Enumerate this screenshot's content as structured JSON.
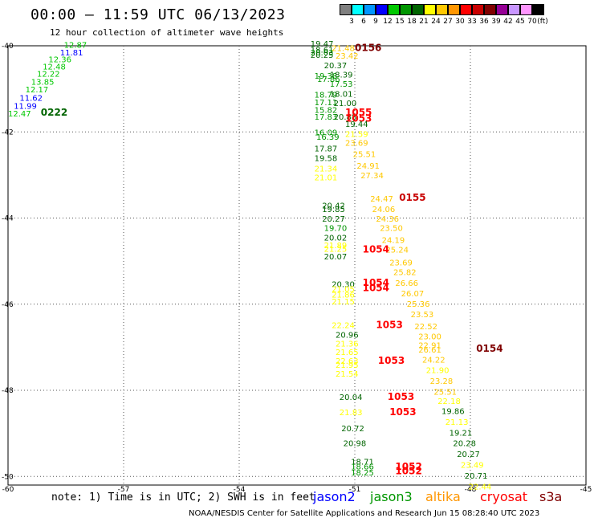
{
  "header": {
    "title": "00:00 – 11:59 UTC 06/13/2023",
    "subtitle": "12 hour collection of altimeter wave heights"
  },
  "colorbar": {
    "labels": [
      "3",
      "6",
      "9",
      "12",
      "15",
      "18",
      "21",
      "24",
      "27",
      "30",
      "33",
      "36",
      "39",
      "42",
      "45",
      "70"
    ],
    "unit": "(ft)",
    "colors": [
      "#808080",
      "#00ffff",
      "#0096ff",
      "#0000ff",
      "#00c800",
      "#009600",
      "#006400",
      "#ffff00",
      "#ffc800",
      "#ff9600",
      "#ff0000",
      "#c80000",
      "#800000",
      "#960096",
      "#c896ff",
      "#ff96ff",
      "#000000"
    ]
  },
  "map": {
    "lat_ticks": [
      "-40",
      "-42",
      "-44",
      "-46",
      "-48",
      "-50"
    ],
    "lon_ticks": [
      "-60",
      "-57",
      "-54",
      "-51",
      "-48",
      "-45"
    ],
    "labels": [
      {
        "lon": -58.55,
        "lat": -40.05,
        "text": "12.87",
        "color": "#00c800"
      },
      {
        "lon": -58.65,
        "lat": -40.22,
        "text": "11.81",
        "color": "#0000ff"
      },
      {
        "lon": -58.95,
        "lat": -40.38,
        "text": "12.36",
        "color": "#00c800"
      },
      {
        "lon": -59.1,
        "lat": -40.55,
        "text": "12.48",
        "color": "#00c800"
      },
      {
        "lon": -59.25,
        "lat": -40.72,
        "text": "12.22",
        "color": "#00c800"
      },
      {
        "lon": -59.4,
        "lat": -40.9,
        "text": "13.85",
        "color": "#00c800"
      },
      {
        "lon": -59.55,
        "lat": -41.08,
        "text": "12.17",
        "color": "#00c800"
      },
      {
        "lon": -59.7,
        "lat": -41.28,
        "text": "11.62",
        "color": "#0000ff"
      },
      {
        "lon": -59.85,
        "lat": -41.46,
        "text": "11.99",
        "color": "#0000ff"
      },
      {
        "lon": -60.0,
        "lat": -41.64,
        "text": "12.47",
        "color": "#00c800"
      },
      {
        "lon": -59.15,
        "lat": -41.62,
        "text": "0222",
        "color": "#006400",
        "big": true
      },
      {
        "lon": -52.15,
        "lat": -40.02,
        "text": "19.47",
        "color": "#006400"
      },
      {
        "lon": -52.15,
        "lat": -40.16,
        "text": "18.61",
        "color": "#006400"
      },
      {
        "lon": -52.15,
        "lat": -40.22,
        "text": "20.03",
        "color": "#009600"
      },
      {
        "lon": -52.15,
        "lat": -40.28,
        "text": "20.25",
        "color": "#006400"
      },
      {
        "lon": -51.6,
        "lat": -40.12,
        "text": "21.48",
        "color": "#ffc800"
      },
      {
        "lon": -51.5,
        "lat": -40.3,
        "text": "23.42",
        "color": "#ffc800"
      },
      {
        "lon": -51.0,
        "lat": -40.12,
        "text": "0156",
        "color": "#800000",
        "big": true
      },
      {
        "lon": -51.8,
        "lat": -40.52,
        "text": "20.37",
        "color": "#006400"
      },
      {
        "lon": -52.05,
        "lat": -40.76,
        "text": "19.38",
        "color": "#009600"
      },
      {
        "lon": -51.65,
        "lat": -40.74,
        "text": "18.39",
        "color": "#006400"
      },
      {
        "lon": -51.98,
        "lat": -40.84,
        "text": "17.86",
        "color": "#009600"
      },
      {
        "lon": -51.65,
        "lat": -40.95,
        "text": "17.53",
        "color": "#009600"
      },
      {
        "lon": -52.05,
        "lat": -41.2,
        "text": "18.79",
        "color": "#009600"
      },
      {
        "lon": -51.65,
        "lat": -41.18,
        "text": "18.01",
        "color": "#006400"
      },
      {
        "lon": -52.05,
        "lat": -41.38,
        "text": "17.11",
        "color": "#009600"
      },
      {
        "lon": -51.55,
        "lat": -41.4,
        "text": "21.00",
        "color": "#006400"
      },
      {
        "lon": -52.05,
        "lat": -41.56,
        "text": "15.82",
        "color": "#009600"
      },
      {
        "lon": -51.55,
        "lat": -41.72,
        "text": "20.88",
        "color": "#006400"
      },
      {
        "lon": -52.05,
        "lat": -41.72,
        "text": "17.83",
        "color": "#009600"
      },
      {
        "lon": -51.25,
        "lat": -41.62,
        "text": "1055",
        "color": "#ff0000",
        "big": true
      },
      {
        "lon": -51.25,
        "lat": -41.76,
        "text": "1053",
        "color": "#ff0000",
        "big": true
      },
      {
        "lon": -51.25,
        "lat": -41.88,
        "text": "19.44",
        "color": "#006400"
      },
      {
        "lon": -52.05,
        "lat": -42.08,
        "text": "16.09",
        "color": "#009600"
      },
      {
        "lon": -52.0,
        "lat": -42.18,
        "text": "16.39",
        "color": "#009600"
      },
      {
        "lon": -51.25,
        "lat": -42.12,
        "text": "21.59",
        "color": "#ffff00"
      },
      {
        "lon": -51.25,
        "lat": -42.32,
        "text": "23.69",
        "color": "#ffc800"
      },
      {
        "lon": -52.05,
        "lat": -42.45,
        "text": "17.87",
        "color": "#006400"
      },
      {
        "lon": -51.05,
        "lat": -42.58,
        "text": "25.51",
        "color": "#ffc800"
      },
      {
        "lon": -52.05,
        "lat": -42.68,
        "text": "19.58",
        "color": "#006400"
      },
      {
        "lon": -50.95,
        "lat": -42.85,
        "text": "24.91",
        "color": "#ffc800"
      },
      {
        "lon": -52.05,
        "lat": -42.92,
        "text": "21.34",
        "color": "#ffff00"
      },
      {
        "lon": -50.85,
        "lat": -43.08,
        "text": "27.34",
        "color": "#ffc800"
      },
      {
        "lon": -52.05,
        "lat": -43.12,
        "text": "21.01",
        "color": "#ffff00"
      },
      {
        "lon": -50.6,
        "lat": -43.62,
        "text": "24.47",
        "color": "#ffc800"
      },
      {
        "lon": -49.85,
        "lat": -43.6,
        "text": "0155",
        "color": "#c80000",
        "big": true
      },
      {
        "lon": -51.85,
        "lat": -43.78,
        "text": "20.42",
        "color": "#006400"
      },
      {
        "lon": -51.85,
        "lat": -43.86,
        "text": "19.85",
        "color": "#006400"
      },
      {
        "lon": -50.55,
        "lat": -43.86,
        "text": "24.06",
        "color": "#ffc800"
      },
      {
        "lon": -51.85,
        "lat": -44.08,
        "text": "20.27",
        "color": "#006400"
      },
      {
        "lon": -50.45,
        "lat": -44.08,
        "text": "24.36",
        "color": "#ffc800"
      },
      {
        "lon": -51.8,
        "lat": -44.3,
        "text": "19.70",
        "color": "#009600"
      },
      {
        "lon": -50.35,
        "lat": -44.3,
        "text": "23.50",
        "color": "#ffc800"
      },
      {
        "lon": -51.8,
        "lat": -44.52,
        "text": "20.02",
        "color": "#006400"
      },
      {
        "lon": -50.3,
        "lat": -44.58,
        "text": "24.19",
        "color": "#ffc800"
      },
      {
        "lon": -51.8,
        "lat": -44.7,
        "text": "21.89",
        "color": "#ffff00"
      },
      {
        "lon": -51.8,
        "lat": -44.78,
        "text": "21.25",
        "color": "#ffff00"
      },
      {
        "lon": -50.2,
        "lat": -44.8,
        "text": "25.24",
        "color": "#ffc800"
      },
      {
        "lon": -50.8,
        "lat": -44.8,
        "text": "1054",
        "color": "#ff0000",
        "big": true
      },
      {
        "lon": -51.8,
        "lat": -44.96,
        "text": "20.07",
        "color": "#006400"
      },
      {
        "lon": -50.1,
        "lat": -45.1,
        "text": "23.69",
        "color": "#ffc800"
      },
      {
        "lon": -50.0,
        "lat": -45.32,
        "text": "25.82",
        "color": "#ffc800"
      },
      {
        "lon": -51.6,
        "lat": -45.6,
        "text": "20.30",
        "color": "#006400"
      },
      {
        "lon": -51.6,
        "lat": -45.72,
        "text": "21.05",
        "color": "#ffff00"
      },
      {
        "lon": -51.6,
        "lat": -45.85,
        "text": "21.86",
        "color": "#ffff00"
      },
      {
        "lon": -51.6,
        "lat": -46.0,
        "text": "21.15",
        "color": "#ffff00"
      },
      {
        "lon": -50.8,
        "lat": -45.58,
        "text": "1054",
        "color": "#ff0000",
        "big": true
      },
      {
        "lon": -50.8,
        "lat": -45.7,
        "text": "1054",
        "color": "#ff0000",
        "big": true
      },
      {
        "lon": -49.95,
        "lat": -45.58,
        "text": "26.66",
        "color": "#ffc800"
      },
      {
        "lon": -49.8,
        "lat": -45.82,
        "text": "26.07",
        "color": "#ffc800"
      },
      {
        "lon": -49.65,
        "lat": -46.06,
        "text": "25.36",
        "color": "#ffc800"
      },
      {
        "lon": -49.55,
        "lat": -46.3,
        "text": "23.53",
        "color": "#ffc800"
      },
      {
        "lon": -51.6,
        "lat": -46.55,
        "text": "22.24",
        "color": "#ffff00"
      },
      {
        "lon": -50.45,
        "lat": -46.55,
        "text": "1053",
        "color": "#ff0000",
        "big": true
      },
      {
        "lon": -49.45,
        "lat": -46.58,
        "text": "22.52",
        "color": "#ffc800"
      },
      {
        "lon": -51.5,
        "lat": -46.78,
        "text": "20.96",
        "color": "#006400"
      },
      {
        "lon": -49.35,
        "lat": -46.82,
        "text": "23.00",
        "color": "#ffc800"
      },
      {
        "lon": -51.5,
        "lat": -46.98,
        "text": "21.36",
        "color": "#ffff00"
      },
      {
        "lon": -49.35,
        "lat": -47.02,
        "text": "22.91",
        "color": "#ffc800"
      },
      {
        "lon": -49.35,
        "lat": -47.12,
        "text": "26.61",
        "color": "#ffc800"
      },
      {
        "lon": -47.85,
        "lat": -47.1,
        "text": "0154",
        "color": "#800000",
        "big": true
      },
      {
        "lon": -51.5,
        "lat": -47.18,
        "text": "21.65",
        "color": "#ffff00"
      },
      {
        "lon": -49.25,
        "lat": -47.36,
        "text": "24.22",
        "color": "#ffc800"
      },
      {
        "lon": -51.5,
        "lat": -47.38,
        "text": "22.63",
        "color": "#ffff00"
      },
      {
        "lon": -51.5,
        "lat": -47.48,
        "text": "21.95",
        "color": "#ffff00"
      },
      {
        "lon": -50.4,
        "lat": -47.38,
        "text": "1053",
        "color": "#ff0000",
        "big": true
      },
      {
        "lon": -49.15,
        "lat": -47.6,
        "text": "21.90",
        "color": "#ffff00"
      },
      {
        "lon": -51.5,
        "lat": -47.68,
        "text": "21.54",
        "color": "#ffff00"
      },
      {
        "lon": -49.05,
        "lat": -47.85,
        "text": "23.28",
        "color": "#ffc800"
      },
      {
        "lon": -48.95,
        "lat": -48.1,
        "text": "25.51",
        "color": "#ffc800"
      },
      {
        "lon": -51.4,
        "lat": -48.22,
        "text": "20.04",
        "color": "#006400"
      },
      {
        "lon": -50.15,
        "lat": -48.22,
        "text": "1053",
        "color": "#ff0000",
        "big": true
      },
      {
        "lon": -48.85,
        "lat": -48.32,
        "text": "22.18",
        "color": "#ffff00"
      },
      {
        "lon": -48.75,
        "lat": -48.55,
        "text": "19.86",
        "color": "#006400"
      },
      {
        "lon": -51.4,
        "lat": -48.58,
        "text": "21.83",
        "color": "#ffff00"
      },
      {
        "lon": -50.1,
        "lat": -48.58,
        "text": "1053",
        "color": "#ff0000",
        "big": true
      },
      {
        "lon": -48.65,
        "lat": -48.8,
        "text": "21.13",
        "color": "#ffff00"
      },
      {
        "lon": -51.35,
        "lat": -48.95,
        "text": "20.72",
        "color": "#006400"
      },
      {
        "lon": -48.55,
        "lat": -49.05,
        "text": "19.21",
        "color": "#006400"
      },
      {
        "lon": -51.3,
        "lat": -49.3,
        "text": "20.98",
        "color": "#006400"
      },
      {
        "lon": -48.45,
        "lat": -49.3,
        "text": "20.28",
        "color": "#006400"
      },
      {
        "lon": -48.35,
        "lat": -49.55,
        "text": "20.27",
        "color": "#006400"
      },
      {
        "lon": -51.1,
        "lat": -49.72,
        "text": "18.71",
        "color": "#006400"
      },
      {
        "lon": -51.1,
        "lat": -49.84,
        "text": "18.66",
        "color": "#009600"
      },
      {
        "lon": -51.1,
        "lat": -49.98,
        "text": "18.25",
        "color": "#009600"
      },
      {
        "lon": -49.95,
        "lat": -49.85,
        "text": "1052",
        "color": "#ff0000",
        "big": true
      },
      {
        "lon": -49.95,
        "lat": -49.95,
        "text": "1052",
        "color": "#ff0000",
        "big": true
      },
      {
        "lon": -48.25,
        "lat": -49.8,
        "text": "23.49",
        "color": "#ffff00"
      },
      {
        "lon": -48.15,
        "lat": -50.05,
        "text": "20.71",
        "color": "#006400"
      },
      {
        "lon": -48.05,
        "lat": -50.3,
        "text": "22.44",
        "color": "#ffff00"
      }
    ]
  },
  "footer": {
    "note": "note: 1) Time is in UTC; 2) SWH is in feet",
    "legend": [
      {
        "name": "jason2",
        "color": "#0000ff"
      },
      {
        "name": "jason3",
        "color": "#009600"
      },
      {
        "name": "altika",
        "color": "#ff9600"
      },
      {
        "name": "cryosat",
        "color": "#ff0000"
      },
      {
        "name": "s3a",
        "color": "#800000"
      }
    ],
    "credit": "NOAA/NESDIS Center for Satellite Applications and Research   Jun 15 08:28:40 UTC 2023"
  }
}
